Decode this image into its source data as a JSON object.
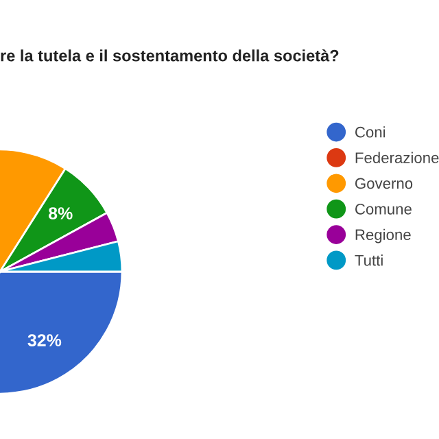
{
  "chart_data": {
    "type": "pie",
    "title": "re la tutela e il sostentamento della società?",
    "categories": [
      "Coni",
      "Federazione",
      "Governo",
      "Comune",
      "Regione",
      "Tutti"
    ],
    "values": [
      32,
      null,
      44,
      8,
      4,
      4
    ],
    "colors": [
      "#3366cc",
      "#dc3912",
      "#ff9900",
      "#109618",
      "#990099",
      "#0099c6"
    ],
    "value_labels": [
      "32%",
      null,
      null,
      "8%",
      null,
      null
    ],
    "legend": "right"
  }
}
